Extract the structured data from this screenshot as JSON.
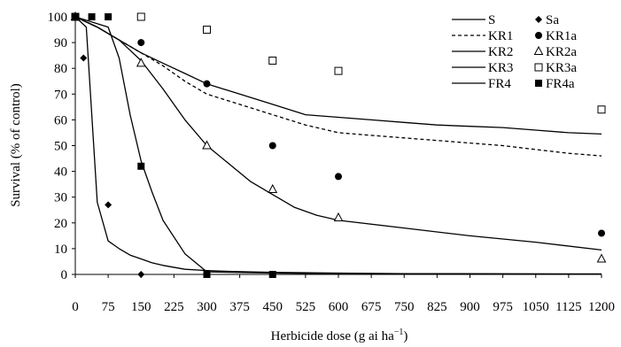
{
  "chart_data": {
    "type": "line",
    "xlabel": "Herbicide dose (g ai ha",
    "xlabel_sup": "−1",
    "xlabel_close": ")",
    "ylabel": "Survival (% of control)",
    "xlim": [
      0,
      1200
    ],
    "ylim": [
      0,
      100
    ],
    "x_ticks": [
      0,
      75,
      150,
      225,
      300,
      375,
      450,
      525,
      600,
      675,
      750,
      825,
      900,
      975,
      1050,
      1125,
      1200
    ],
    "x_tick_labels": [
      "0",
      "75",
      "150",
      "225",
      "300",
      "375",
      "450",
      "525",
      "600",
      "675",
      "750",
      "825",
      "900",
      "975",
      "1050",
      "1125",
      "1200"
    ],
    "y_ticks": [
      0,
      10,
      20,
      30,
      40,
      50,
      60,
      70,
      80,
      90,
      100
    ],
    "y_tick_labels": [
      "0",
      "10",
      "20",
      "30",
      "40",
      "50",
      "60",
      "70",
      "80",
      "90",
      "100"
    ],
    "grid": false,
    "legend_position": "top-right",
    "lines": [
      {
        "name": "S",
        "dash": "solid",
        "x": [
          0,
          25,
          50,
          75,
          100,
          125,
          150,
          175,
          200,
          250,
          300,
          350,
          400,
          450,
          600,
          750,
          1200
        ],
        "y": [
          100,
          96,
          28,
          13,
          10,
          7.5,
          6,
          4.5,
          3.5,
          2,
          1.5,
          1.2,
          1,
          0.8,
          0.5,
          0.3,
          0.2
        ]
      },
      {
        "name": "KR1",
        "dash": "dashed",
        "x": [
          0,
          50,
          100,
          150,
          200,
          250,
          300,
          375,
          450,
          525,
          600,
          675,
          750,
          825,
          900,
          975,
          1050,
          1125,
          1200
        ],
        "y": [
          100,
          96,
          91,
          86,
          81,
          75,
          70,
          66,
          62,
          58,
          55,
          54,
          53,
          52,
          51,
          50,
          48.5,
          47,
          46
        ]
      },
      {
        "name": "KR2",
        "dash": "solid",
        "x": [
          0,
          50,
          100,
          150,
          200,
          250,
          300,
          350,
          400,
          450,
          500,
          550,
          600,
          750,
          900,
          1050,
          1200
        ],
        "y": [
          100,
          96,
          91,
          83,
          72,
          60,
          50,
          43,
          36,
          31,
          26,
          23,
          21,
          18,
          15,
          12.5,
          9.5
        ]
      },
      {
        "name": "KR3",
        "dash": "solid",
        "x": [
          0,
          50,
          100,
          150,
          200,
          250,
          300,
          375,
          450,
          525,
          600,
          675,
          750,
          825,
          900,
          975,
          1050,
          1125,
          1200
        ],
        "y": [
          100,
          96,
          91,
          86,
          82,
          78,
          74,
          70,
          66,
          62,
          61,
          60,
          59,
          58,
          57.5,
          57,
          56,
          55,
          54.5
        ]
      },
      {
        "name": "FR4",
        "dash": "solid",
        "x": [
          0,
          75,
          100,
          125,
          150,
          175,
          200,
          250,
          300,
          450,
          600,
          750,
          1200
        ],
        "y": [
          100,
          96,
          84,
          62,
          44,
          32,
          21,
          8,
          1,
          0.5,
          0.3,
          0.2,
          0.1
        ]
      }
    ],
    "markers": [
      {
        "name": "Sa",
        "symbol": "diamond-filled",
        "x": [
          0,
          18.75,
          75,
          150,
          300,
          450
        ],
        "y": [
          100,
          84,
          27,
          0,
          0,
          0
        ]
      },
      {
        "name": "KR1a",
        "symbol": "circle-filled",
        "x": [
          0,
          150,
          300,
          450,
          600,
          1200
        ],
        "y": [
          100,
          90,
          74,
          50,
          38,
          16
        ]
      },
      {
        "name": "KR2a",
        "symbol": "triangle-open",
        "x": [
          0,
          150,
          300,
          450,
          600,
          1200
        ],
        "y": [
          100,
          82,
          50,
          33,
          22,
          6
        ]
      },
      {
        "name": "KR3a",
        "symbol": "square-open",
        "x": [
          0,
          150,
          300,
          450,
          600,
          1200
        ],
        "y": [
          100,
          100,
          95,
          83,
          79,
          64
        ]
      },
      {
        "name": "FR4a",
        "symbol": "square-filled",
        "x": [
          0,
          37.5,
          75,
          150,
          300,
          450
        ],
        "y": [
          100,
          100,
          100,
          42,
          0,
          0
        ]
      }
    ],
    "legend": [
      {
        "line": "S",
        "marker": "Sa"
      },
      {
        "line": "KR1",
        "marker": "KR1a"
      },
      {
        "line": "KR2",
        "marker": "KR2a"
      },
      {
        "line": "KR3",
        "marker": "KR3a"
      },
      {
        "line": "FR4",
        "marker": "FR4a"
      }
    ]
  }
}
